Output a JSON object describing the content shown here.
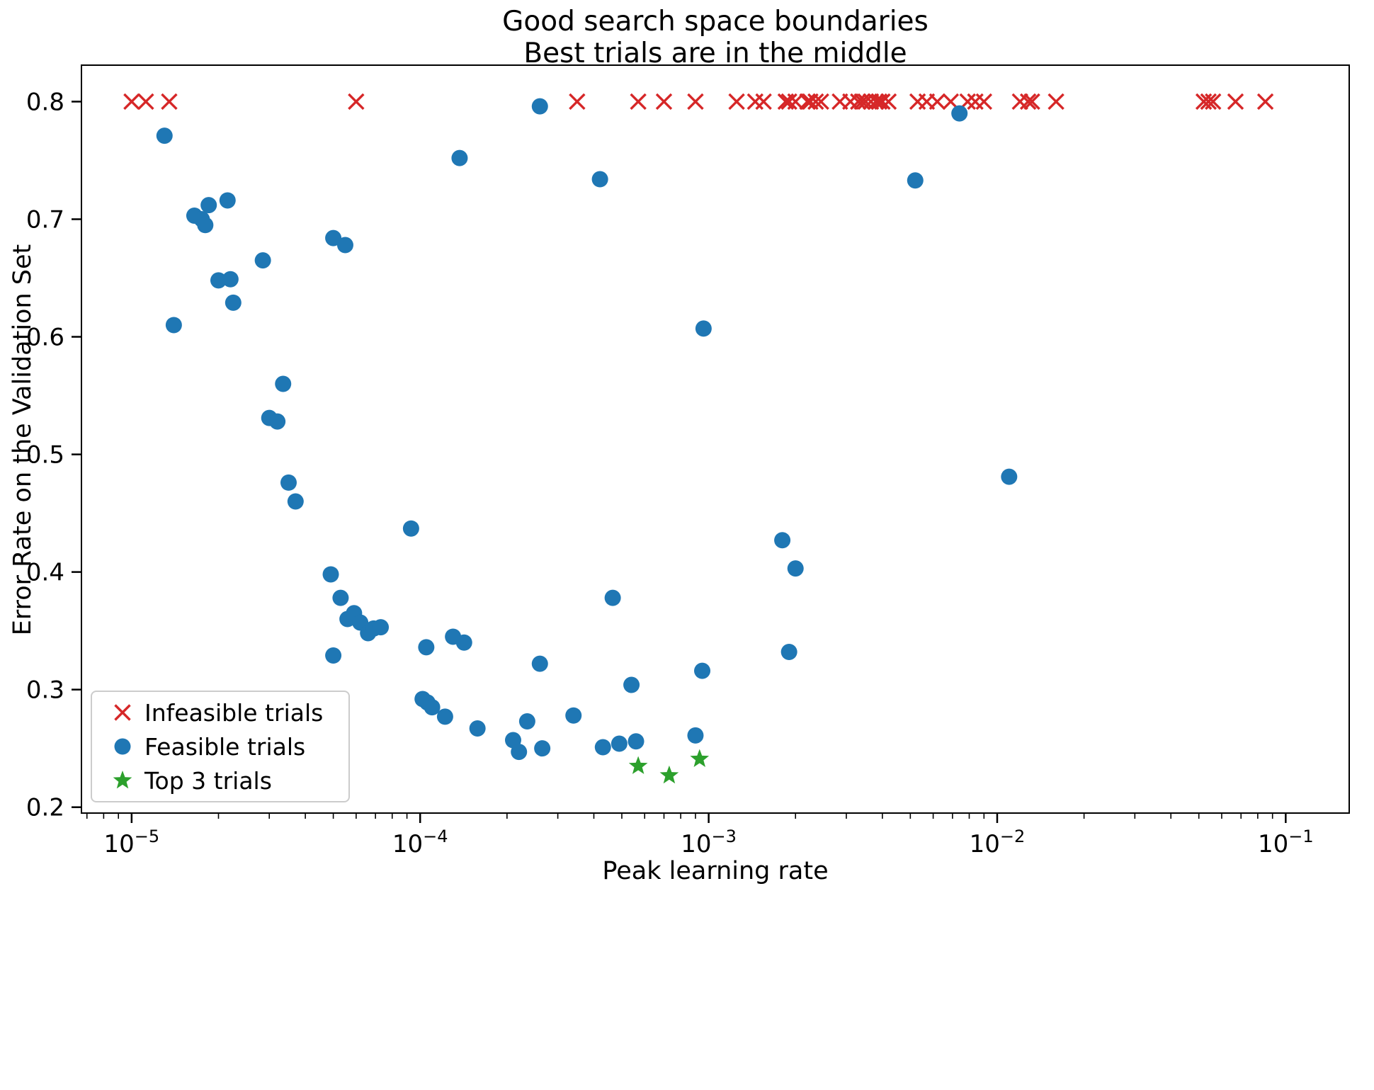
{
  "figure": {
    "title_line1": "Good search space boundaries",
    "title_line2": "Best trials are in the middle"
  },
  "legend": {
    "items": [
      {
        "label": "Infeasible trials",
        "marker": "x",
        "color": "#d62728"
      },
      {
        "label": "Feasible trials",
        "marker": "circle",
        "color": "#1f77b4"
      },
      {
        "label": "Top 3 trials",
        "marker": "star",
        "color": "#2ca02c"
      }
    ]
  },
  "chart_data": {
    "type": "scatter",
    "title": "Good search space boundaries\nBest trials are in the middle",
    "xlabel": "Peak learning rate",
    "ylabel": "Error Rate on the Validation Set",
    "x_scale": "log",
    "y_scale": "linear",
    "grid": false,
    "legend_position": "lower left",
    "xlim": [
      6.7e-06,
      0.166
    ],
    "ylim": [
      0.195,
      0.831
    ],
    "x_ticks": [
      1e-05,
      0.0001,
      0.001,
      0.01,
      0.1
    ],
    "y_ticks": [
      0.2,
      0.3,
      0.4,
      0.5,
      0.6,
      0.7,
      0.8
    ],
    "series": [
      {
        "name": "Infeasible trials",
        "marker": "x",
        "color": "#d62728",
        "points": [
          [
            1e-05,
            0.8
          ],
          [
            1.12e-05,
            0.8
          ],
          [
            1.35e-05,
            0.8
          ],
          [
            6e-05,
            0.8
          ],
          [
            0.00035,
            0.8
          ],
          [
            0.00057,
            0.8
          ],
          [
            0.0007,
            0.8
          ],
          [
            0.0009,
            0.8
          ],
          [
            0.00125,
            0.8
          ],
          [
            0.00145,
            0.8
          ],
          [
            0.00155,
            0.8
          ],
          [
            0.00185,
            0.8
          ],
          [
            0.0019,
            0.8
          ],
          [
            0.002,
            0.8
          ],
          [
            0.0022,
            0.8
          ],
          [
            0.00225,
            0.8
          ],
          [
            0.00235,
            0.8
          ],
          [
            0.00245,
            0.8
          ],
          [
            0.00285,
            0.8
          ],
          [
            0.0031,
            0.8
          ],
          [
            0.0033,
            0.8
          ],
          [
            0.0034,
            0.8
          ],
          [
            0.0035,
            0.8
          ],
          [
            0.00365,
            0.8
          ],
          [
            0.0038,
            0.8
          ],
          [
            0.0039,
            0.8
          ],
          [
            0.004,
            0.8
          ],
          [
            0.0042,
            0.8
          ],
          [
            0.0053,
            0.8
          ],
          [
            0.0057,
            0.8
          ],
          [
            0.0062,
            0.8
          ],
          [
            0.0069,
            0.8
          ],
          [
            0.0079,
            0.8
          ],
          [
            0.0084,
            0.8
          ],
          [
            0.009,
            0.8
          ],
          [
            0.012,
            0.8
          ],
          [
            0.0128,
            0.8
          ],
          [
            0.0132,
            0.8
          ],
          [
            0.016,
            0.8
          ],
          [
            0.052,
            0.8
          ],
          [
            0.054,
            0.8
          ],
          [
            0.056,
            0.8
          ],
          [
            0.067,
            0.8
          ],
          [
            0.085,
            0.8
          ]
        ]
      },
      {
        "name": "Feasible trials",
        "marker": "circle",
        "color": "#1f77b4",
        "points": [
          [
            1.3e-05,
            0.771
          ],
          [
            1.4e-05,
            0.61
          ],
          [
            1.65e-05,
            0.703
          ],
          [
            1.75e-05,
            0.7
          ],
          [
            1.8e-05,
            0.695
          ],
          [
            1.85e-05,
            0.712
          ],
          [
            2.15e-05,
            0.716
          ],
          [
            2e-05,
            0.648
          ],
          [
            2.2e-05,
            0.649
          ],
          [
            2.25e-05,
            0.629
          ],
          [
            2.85e-05,
            0.665
          ],
          [
            3e-05,
            0.531
          ],
          [
            3.2e-05,
            0.528
          ],
          [
            3.35e-05,
            0.56
          ],
          [
            3.5e-05,
            0.476
          ],
          [
            3.7e-05,
            0.46
          ],
          [
            5e-05,
            0.684
          ],
          [
            5.5e-05,
            0.678
          ],
          [
            4.9e-05,
            0.398
          ],
          [
            5.3e-05,
            0.378
          ],
          [
            5.6e-05,
            0.36
          ],
          [
            5.9e-05,
            0.365
          ],
          [
            6.2e-05,
            0.357
          ],
          [
            6.6e-05,
            0.348
          ],
          [
            6.9e-05,
            0.352
          ],
          [
            7.3e-05,
            0.353
          ],
          [
            5e-05,
            0.329
          ],
          [
            9.3e-05,
            0.437
          ],
          [
            0.000105,
            0.336
          ],
          [
            0.000102,
            0.292
          ],
          [
            0.000106,
            0.289
          ],
          [
            0.00011,
            0.285
          ],
          [
            0.000122,
            0.277
          ],
          [
            0.00013,
            0.345
          ],
          [
            0.000142,
            0.34
          ],
          [
            0.000137,
            0.752
          ],
          [
            0.000158,
            0.267
          ],
          [
            0.00021,
            0.257
          ],
          [
            0.00022,
            0.247
          ],
          [
            0.000235,
            0.273
          ],
          [
            0.00026,
            0.322
          ],
          [
            0.000265,
            0.25
          ],
          [
            0.00026,
            0.796
          ],
          [
            0.00034,
            0.278
          ],
          [
            0.00042,
            0.734
          ],
          [
            0.00043,
            0.251
          ],
          [
            0.000465,
            0.378
          ],
          [
            0.00054,
            0.304
          ],
          [
            0.00049,
            0.254
          ],
          [
            0.00056,
            0.256
          ],
          [
            0.00096,
            0.607
          ],
          [
            0.0009,
            0.261
          ],
          [
            0.00095,
            0.316
          ],
          [
            0.0018,
            0.427
          ],
          [
            0.002,
            0.403
          ],
          [
            0.0019,
            0.332
          ],
          [
            0.0052,
            0.733
          ],
          [
            0.0074,
            0.79
          ],
          [
            0.011,
            0.481
          ]
        ]
      },
      {
        "name": "Top 3 trials",
        "marker": "star",
        "color": "#2ca02c",
        "points": [
          [
            0.00057,
            0.235
          ],
          [
            0.00073,
            0.227
          ],
          [
            0.00093,
            0.241
          ]
        ]
      }
    ]
  }
}
